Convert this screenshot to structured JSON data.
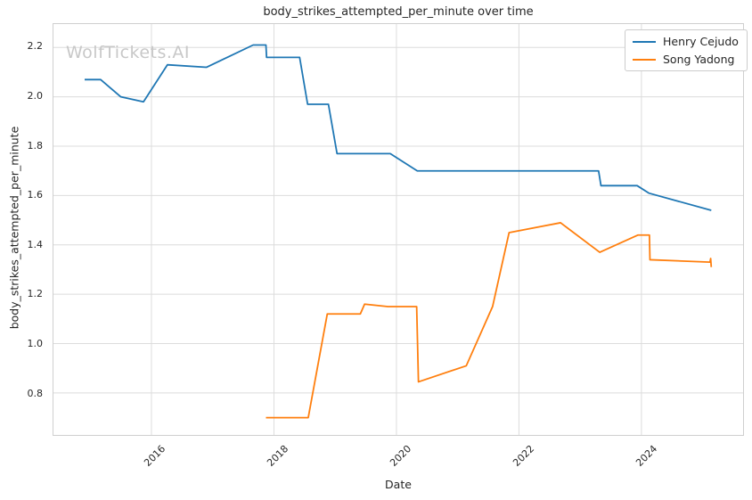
{
  "watermark": "WolfTickets.AI",
  "colors": {
    "grid": "#dcdcdc",
    "spine": "#cfcfcf",
    "text": "#262626",
    "watermark": "#c8c8c8",
    "background": "#ffffff",
    "series_blue": "#1f77b4",
    "series_orange": "#ff7f0e"
  },
  "chart_data": {
    "type": "line",
    "title": "body_strikes_attempted_per_minute over time",
    "xlabel": "Date",
    "ylabel": "body_strikes_attempted_per_minute",
    "xlim": [
      2014.4,
      2025.66
    ],
    "ylim": [
      0.63,
      2.295
    ],
    "x_ticks": [
      2016,
      2018,
      2020,
      2022,
      2024
    ],
    "y_ticks": [
      2.2,
      2.0,
      1.8,
      1.6,
      1.4,
      1.2,
      1.0,
      0.8
    ],
    "grid": true,
    "legend_position": "upper right",
    "series": [
      {
        "name": "Henry Cejudo",
        "key": "henry-cejudo",
        "color": "#1f77b4",
        "points": [
          [
            2014.91,
            2.07
          ],
          [
            2015.17,
            2.07
          ],
          [
            2015.5,
            2.0
          ],
          [
            2015.87,
            1.98
          ],
          [
            2016.26,
            2.13
          ],
          [
            2016.9,
            2.12
          ],
          [
            2017.66,
            2.21
          ],
          [
            2017.87,
            2.21
          ],
          [
            2017.88,
            2.16
          ],
          [
            2018.42,
            2.16
          ],
          [
            2018.55,
            1.97
          ],
          [
            2018.89,
            1.97
          ],
          [
            2019.03,
            1.77
          ],
          [
            2019.9,
            1.77
          ],
          [
            2020.34,
            1.7
          ],
          [
            2023.3,
            1.7
          ],
          [
            2023.34,
            1.64
          ],
          [
            2023.93,
            1.64
          ],
          [
            2024.12,
            1.61
          ],
          [
            2025.14,
            1.54
          ]
        ]
      },
      {
        "name": "Song Yadong",
        "key": "song-yadong",
        "color": "#ff7f0e",
        "points": [
          [
            2017.87,
            0.7
          ],
          [
            2018.56,
            0.7
          ],
          [
            2018.87,
            1.12
          ],
          [
            2019.41,
            1.12
          ],
          [
            2019.48,
            1.16
          ],
          [
            2019.86,
            1.15
          ],
          [
            2020.33,
            1.15
          ],
          [
            2020.36,
            0.845
          ],
          [
            2021.14,
            0.91
          ],
          [
            2021.57,
            1.15
          ],
          [
            2021.84,
            1.45
          ],
          [
            2022.68,
            1.49
          ],
          [
            2023.32,
            1.37
          ],
          [
            2023.94,
            1.44
          ],
          [
            2024.13,
            1.44
          ],
          [
            2024.14,
            1.34
          ],
          [
            2025.12,
            1.33
          ],
          [
            2025.13,
            1.345
          ],
          [
            2025.14,
            1.31
          ]
        ]
      }
    ]
  }
}
